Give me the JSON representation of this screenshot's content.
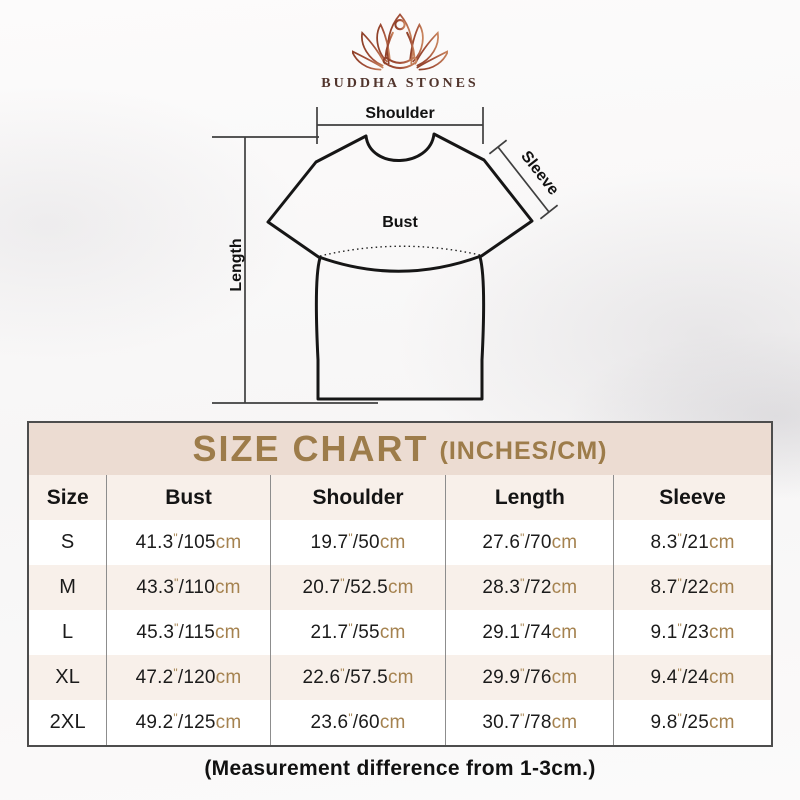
{
  "brand": {
    "name": "BUDDHA STONES",
    "logo_icon": "lotus-meditation-icon"
  },
  "diagram": {
    "labels": {
      "shoulder": "Shoulder",
      "sleeve": "Sleeve",
      "bust": "Bust",
      "length": "Length"
    }
  },
  "size_chart": {
    "title": "SIZE CHART",
    "title_suffix": "(INCHES/CM)",
    "columns": [
      "Size",
      "Bust",
      "Shoulder",
      "Length",
      "Sleeve"
    ],
    "marks": {
      "inch": "\"",
      "slash": "/",
      "cm_unit": "cm"
    },
    "rows": [
      {
        "size": "S",
        "bust": {
          "in": "41.3",
          "cm": "105"
        },
        "shoulder": {
          "in": "19.7",
          "cm": "50"
        },
        "length": {
          "in": "27.6",
          "cm": "70"
        },
        "sleeve": {
          "in": "8.3",
          "cm": "21"
        }
      },
      {
        "size": "M",
        "bust": {
          "in": "43.3",
          "cm": "110"
        },
        "shoulder": {
          "in": "20.7",
          "cm": "52.5"
        },
        "length": {
          "in": "28.3",
          "cm": "72"
        },
        "sleeve": {
          "in": "8.7",
          "cm": "22"
        }
      },
      {
        "size": "L",
        "bust": {
          "in": "45.3",
          "cm": "115"
        },
        "shoulder": {
          "in": "21.7",
          "cm": "55"
        },
        "length": {
          "in": "29.1",
          "cm": "74"
        },
        "sleeve": {
          "in": "9.1",
          "cm": "23"
        }
      },
      {
        "size": "XL",
        "bust": {
          "in": "47.2",
          "cm": "120"
        },
        "shoulder": {
          "in": "22.6",
          "cm": "57.5"
        },
        "length": {
          "in": "29.9",
          "cm": "76"
        },
        "sleeve": {
          "in": "9.4",
          "cm": "24"
        }
      },
      {
        "size": "2XL",
        "bust": {
          "in": "49.2",
          "cm": "125"
        },
        "shoulder": {
          "in": "23.6",
          "cm": "60"
        },
        "length": {
          "in": "30.7",
          "cm": "78"
        },
        "sleeve": {
          "in": "9.8",
          "cm": "25"
        }
      }
    ]
  },
  "chart_data": {
    "type": "table",
    "title": "SIZE CHART (INCHES/CM)",
    "columns": [
      "Size",
      "Bust",
      "Shoulder",
      "Length",
      "Sleeve"
    ],
    "rows": [
      [
        "S",
        "41.3\"/105cm",
        "19.7\"/50cm",
        "27.6\"/70cm",
        "8.3\"/21cm"
      ],
      [
        "M",
        "43.3\"/110cm",
        "20.7\"/52.5cm",
        "28.3\"/72cm",
        "8.7\"/22cm"
      ],
      [
        "L",
        "45.3\"/115cm",
        "21.7\"/55cm",
        "29.1\"/74cm",
        "9.1\"/23cm"
      ],
      [
        "XL",
        "47.2\"/120cm",
        "22.6\"/57.5cm",
        "29.9\"/76cm",
        "9.4\"/24cm"
      ],
      [
        "2XL",
        "49.2\"/125cm",
        "23.6\"/60cm",
        "30.7\"/78cm",
        "9.8\"/25cm"
      ]
    ],
    "footnote": "(Measurement difference from 1-3cm.)"
  },
  "footer": {
    "note": "(Measurement difference from 1-3cm.)"
  },
  "colors": {
    "title_gold": "#9d7c4a",
    "value_gold": "#a5824f",
    "title_band_bg": "#ecdcd2",
    "alt_row_bg": "#f8f0ea",
    "table_border": "#4d4d4d",
    "logo_red": "#a34f38",
    "logo_text": "#51342c"
  }
}
